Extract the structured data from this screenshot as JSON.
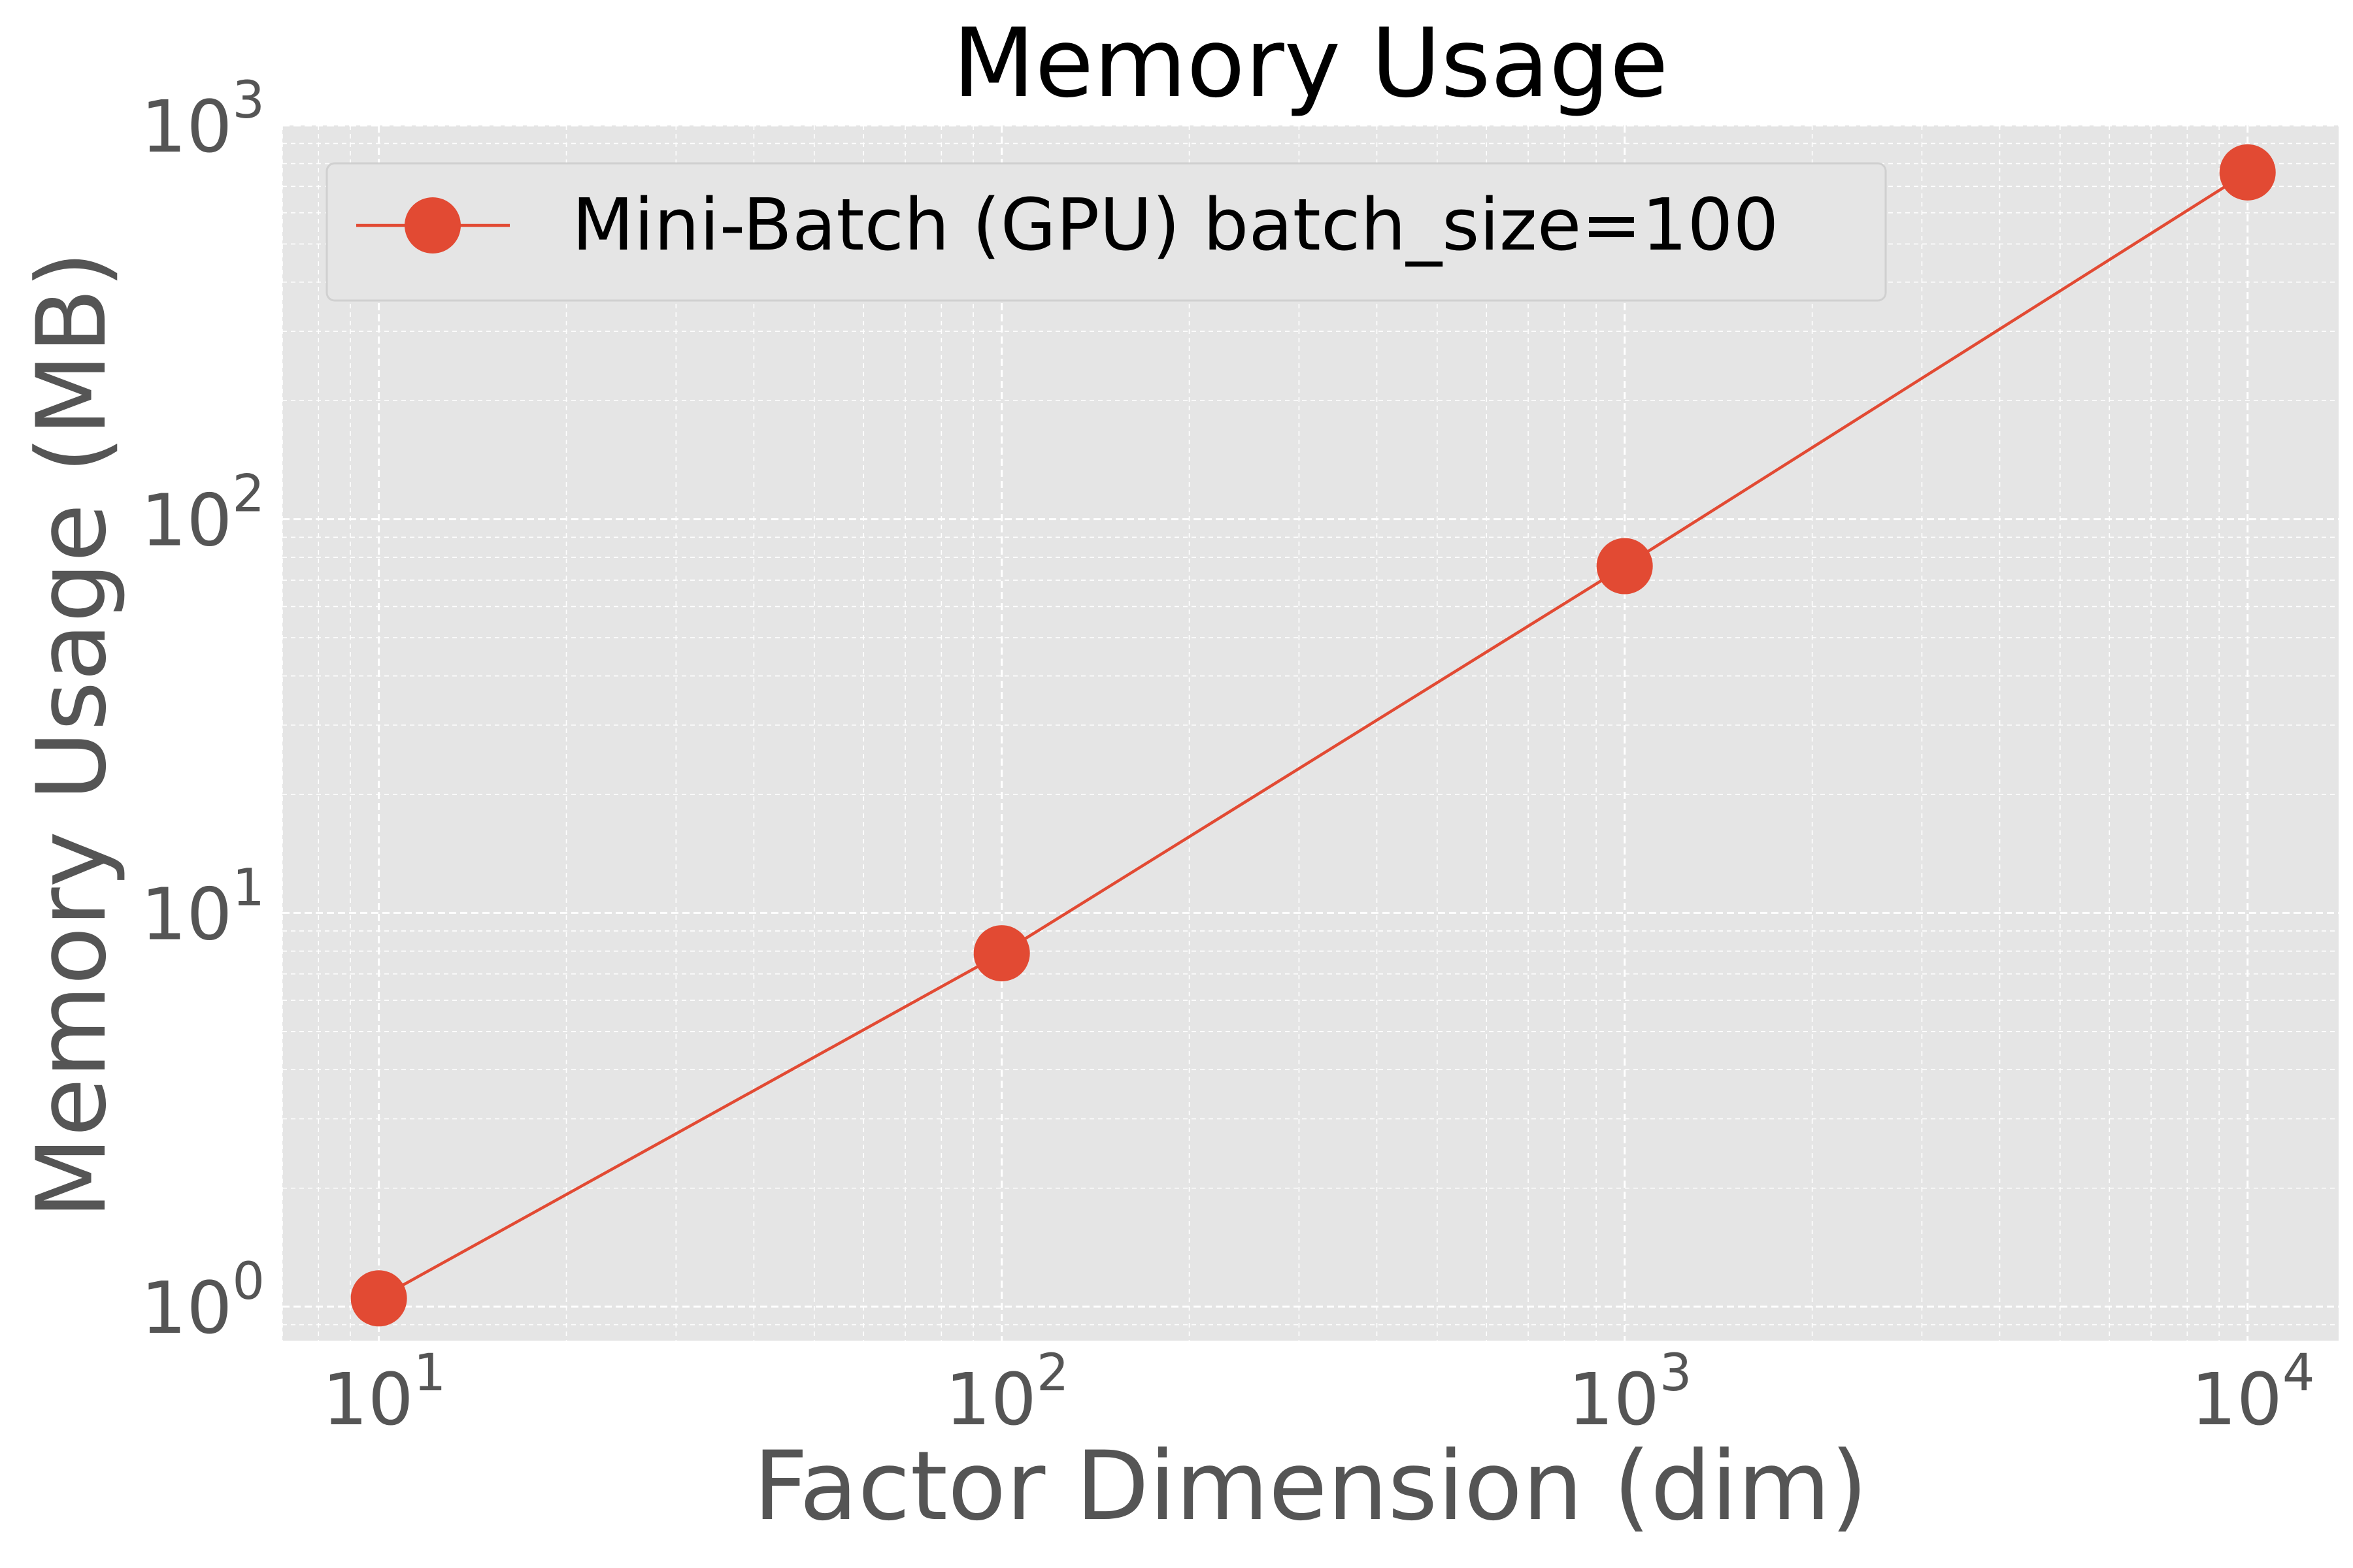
{
  "chart_data": {
    "type": "line",
    "title": "Memory Usage",
    "xlabel": "Factor Dimension (dim)",
    "ylabel": "Memory Usage (MB)",
    "xscale": "log",
    "yscale": "log",
    "xlim": [
      7,
      14000
    ],
    "ylim": [
      0.82,
      1000
    ],
    "x_ticks": [
      {
        "base": "10",
        "exp": "1",
        "value": 10
      },
      {
        "base": "10",
        "exp": "2",
        "value": 100
      },
      {
        "base": "10",
        "exp": "3",
        "value": 1000
      },
      {
        "base": "10",
        "exp": "4",
        "value": 10000
      }
    ],
    "y_ticks": [
      {
        "base": "10",
        "exp": "0",
        "value": 1
      },
      {
        "base": "10",
        "exp": "1",
        "value": 10
      },
      {
        "base": "10",
        "exp": "2",
        "value": 100
      },
      {
        "base": "10",
        "exp": "3",
        "value": 1000
      }
    ],
    "grid": true,
    "legend_position": "top-left",
    "series": [
      {
        "name": "Mini-Batch (GPU) batch_size=100",
        "color": "#e24a33",
        "marker": "circle",
        "x": [
          10,
          100,
          1000,
          10000
        ],
        "y": [
          1.05,
          7.9,
          76,
          760
        ]
      }
    ],
    "colors": {
      "plot_background": "#e5e5e5",
      "grid": "#ffffff",
      "tick_label": "#555555",
      "title": "#000000"
    }
  }
}
